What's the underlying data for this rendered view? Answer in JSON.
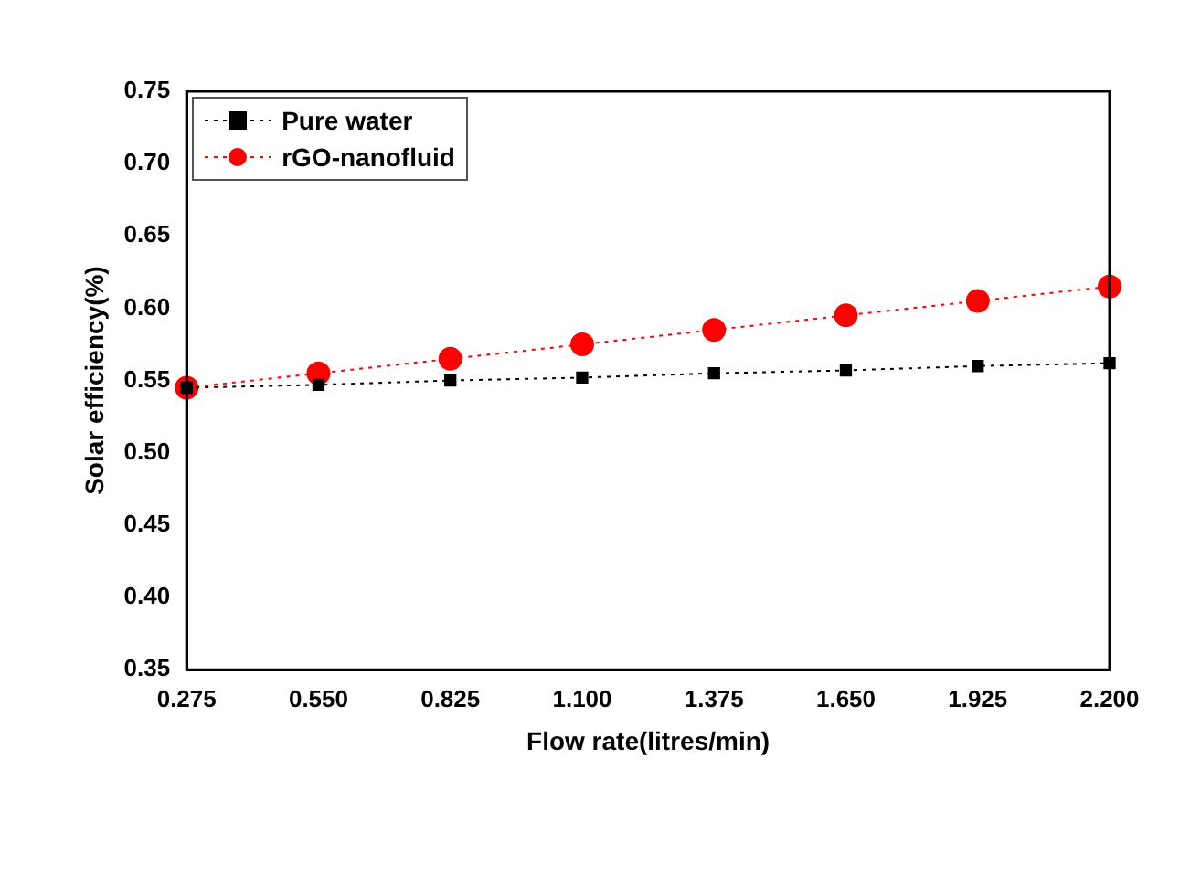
{
  "chart_data": {
    "type": "line",
    "xlabel": "Flow rate(litres/min)",
    "ylabel": "Solar efficiency(%)",
    "x": [
      0.275,
      0.55,
      0.825,
      1.1,
      1.375,
      1.65,
      1.925,
      2.2
    ],
    "series": [
      {
        "name": "Pure water",
        "color": "#000000",
        "marker": "square",
        "values": [
          0.545,
          0.547,
          0.55,
          0.552,
          0.555,
          0.557,
          0.56,
          0.562
        ]
      },
      {
        "name": "rGO-nanofluid",
        "color": "#ff0000",
        "marker": "circle",
        "values": [
          0.545,
          0.555,
          0.565,
          0.575,
          0.585,
          0.595,
          0.605,
          0.615
        ]
      }
    ],
    "xlim": [
      0.275,
      2.2
    ],
    "xticks": [
      0.275,
      {
        "value": 0.55,
        "label": "0.550"
      },
      0.825,
      {
        "value": 1.1,
        "label": "1.100"
      },
      1.375,
      {
        "value": 1.65,
        "label": "1.650"
      },
      1.925,
      {
        "value": 2.2,
        "label": "2.200"
      }
    ],
    "ylim": [
      0.35,
      0.75
    ],
    "yticks": [
      0.35,
      {
        "value": 0.4,
        "label": "0.40"
      },
      0.45,
      {
        "value": 0.5,
        "label": "0.50"
      },
      0.55,
      {
        "value": 0.6,
        "label": "0.60"
      },
      0.65,
      {
        "value": 0.7,
        "label": "0.70"
      },
      0.75
    ],
    "grid": false,
    "legend": "top left",
    "line_style": "dotted"
  }
}
